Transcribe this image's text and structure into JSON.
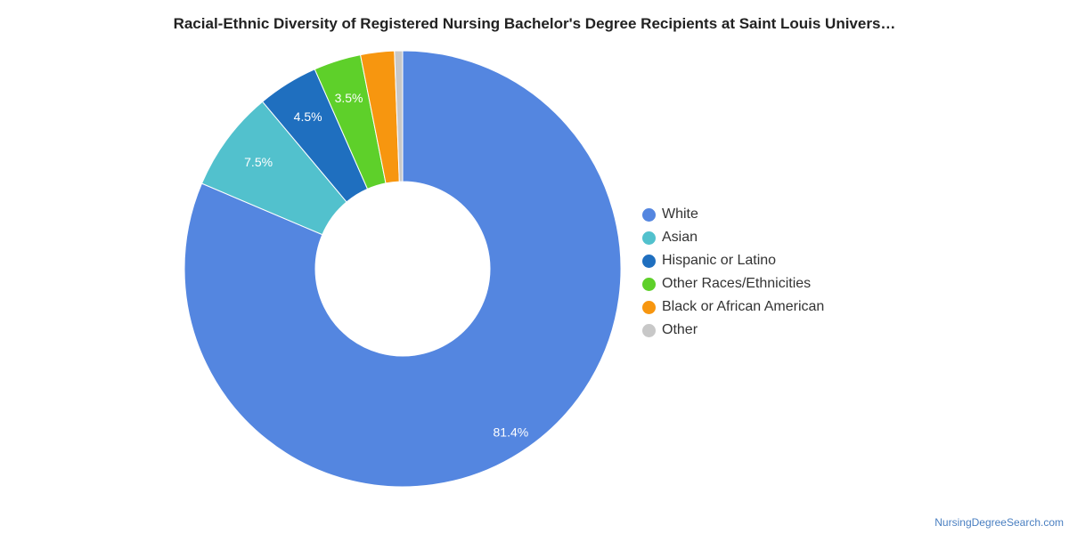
{
  "chart_data": {
    "type": "pie",
    "title": "Racial-Ethnic Diversity of Registered Nursing Bachelor's Degree Recipients at Saint Louis Univers…",
    "donut": true,
    "legend_position": "right",
    "slices": [
      {
        "name": "White",
        "value": 81.4,
        "label": "81.4%",
        "color": "#5486e0"
      },
      {
        "name": "Asian",
        "value": 7.5,
        "label": "7.5%",
        "color": "#52c1cd"
      },
      {
        "name": "Hispanic or Latino",
        "value": 4.5,
        "label": "4.5%",
        "color": "#1f6fbf"
      },
      {
        "name": "Other Races/Ethnicities",
        "value": 3.5,
        "label": "3.5%",
        "color": "#5ed02a"
      },
      {
        "name": "Black or African American",
        "value": 2.5,
        "label": "",
        "color": "#f7960f"
      },
      {
        "name": "Other",
        "value": 0.6,
        "label": "",
        "color": "#c8c8c8"
      }
    ]
  },
  "footer": {
    "watermark": "NursingDegreeSearch.com"
  }
}
